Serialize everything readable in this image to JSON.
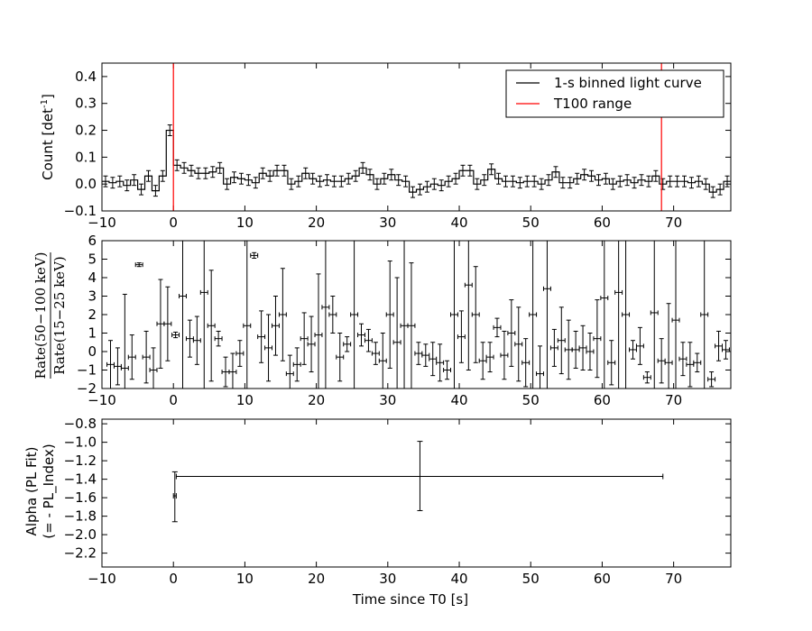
{
  "chart_data": [
    {
      "id": "top",
      "type": "step",
      "title": "",
      "xlabel": "",
      "ylabel": "Count [det",
      "ylabel_sup": "-1",
      "ylabel_tail": "]",
      "xlim": [
        -10,
        78
      ],
      "ylim": [
        -0.1,
        0.45
      ],
      "xticks": [
        -10,
        0,
        10,
        20,
        30,
        40,
        50,
        60,
        70
      ],
      "xtick_labels": [
        "−10",
        "0",
        "10",
        "20",
        "30",
        "40",
        "50",
        "60",
        "70"
      ],
      "yticks": [
        -0.1,
        0.0,
        0.1,
        0.2,
        0.3,
        0.4
      ],
      "ytick_labels": [
        "−0.1",
        "0.0",
        "0.1",
        "0.2",
        "0.3",
        "0.4"
      ],
      "legend": {
        "location": "top-right",
        "entries": [
          {
            "label": "1-s binned light curve",
            "color": "#000000"
          },
          {
            "label": "T100 range",
            "color": "#ff0000"
          }
        ]
      },
      "series": [
        {
          "name": "1-s binned light curve",
          "color": "#000000",
          "bin_start": -10,
          "bin_width": 1,
          "yerr": 0.02,
          "values": [
            0.01,
            0.005,
            0.01,
            -0.005,
            0.015,
            -0.02,
            0.03,
            -0.025,
            0.03,
            0.2,
            0.07,
            0.06,
            0.05,
            0.04,
            0.04,
            0.045,
            0.06,
            0.0,
            0.025,
            0.02,
            0.015,
            0.005,
            0.04,
            0.03,
            0.05,
            0.05,
            0.0,
            0.01,
            0.04,
            0.02,
            0.01,
            0.015,
            0.01,
            0.01,
            0.02,
            0.03,
            0.06,
            0.035,
            0.0,
            0.02,
            0.035,
            0.015,
            0.01,
            -0.03,
            -0.02,
            -0.01,
            0.0,
            -0.005,
            0.01,
            0.02,
            0.05,
            0.05,
            0.0,
            0.015,
            0.055,
            0.02,
            0.01,
            0.01,
            0.005,
            0.01,
            0.01,
            0.0,
            0.015,
            0.045,
            0.005,
            0.005,
            0.02,
            0.035,
            0.03,
            0.015,
            0.02,
            0.0,
            0.01,
            0.015,
            0.005,
            0.015,
            0.01,
            0.03,
            0.0,
            0.01,
            0.01,
            0.01,
            0.005,
            0.01,
            0.0,
            -0.03,
            -0.02,
            0.01
          ]
        }
      ],
      "vlines": [
        {
          "x": 0.0,
          "color": "#ff0000"
        },
        {
          "x": 68.3,
          "color": "#ff0000"
        }
      ]
    },
    {
      "id": "middle",
      "type": "errorbar",
      "title": "",
      "xlabel": "",
      "ylabel_top": "Rate(50−100 keV)",
      "ylabel_bottom": "Rate(15−25 keV)",
      "xlim": [
        -10,
        78
      ],
      "ylim": [
        -2,
        6
      ],
      "xticks": [
        -10,
        0,
        10,
        20,
        30,
        40,
        50,
        60,
        70
      ],
      "xtick_labels": [
        "−10",
        "0",
        "10",
        "20",
        "30",
        "40",
        "50",
        "60",
        "70"
      ],
      "yticks": [
        -2,
        -1,
        0,
        1,
        2,
        3,
        4,
        5,
        6
      ],
      "ytick_labels": [
        "−2",
        "−1",
        "0",
        "1",
        "2",
        "3",
        "4",
        "5",
        "6"
      ],
      "points": [
        {
          "x": -8.8,
          "y": -0.7,
          "yerr": 1.3
        },
        {
          "x": -7.8,
          "y": -0.8,
          "yerr": 1.0
        },
        {
          "x": -6.8,
          "y": -0.9,
          "yerr": 4.0
        },
        {
          "x": -5.8,
          "y": -0.3,
          "yerr": 1.2
        },
        {
          "x": -4.8,
          "y": 4.7,
          "yerr": 0.1
        },
        {
          "x": -3.8,
          "y": -0.3,
          "yerr": 1.4
        },
        {
          "x": -2.8,
          "y": -1.0,
          "yerr": 1.2
        },
        {
          "x": -1.8,
          "y": 1.5,
          "yerr": 2.4
        },
        {
          "x": -0.8,
          "y": 1.5,
          "yerr": 2.0
        },
        {
          "x": 0.3,
          "y": 0.9,
          "yerr": 0.15
        },
        {
          "x": 1.3,
          "y": 3.0,
          "yerr": 6.0
        },
        {
          "x": 2.3,
          "y": 0.7,
          "yerr": 1.0
        },
        {
          "x": 3.3,
          "y": 0.6,
          "yerr": 1.3
        },
        {
          "x": 4.3,
          "y": 3.2,
          "yerr": 6.0
        },
        {
          "x": 5.3,
          "y": 1.4,
          "yerr": 3.0
        },
        {
          "x": 6.3,
          "y": 0.7,
          "yerr": 0.4
        },
        {
          "x": 7.3,
          "y": -1.1,
          "yerr": 0.8
        },
        {
          "x": 8.3,
          "y": -1.1,
          "yerr": 1.0
        },
        {
          "x": 9.3,
          "y": -0.1,
          "yerr": 0.7
        },
        {
          "x": 10.3,
          "y": 1.4,
          "yerr": 6.0
        },
        {
          "x": 11.3,
          "y": 5.2,
          "yerr": 0.15
        },
        {
          "x": 12.3,
          "y": 0.8,
          "yerr": 1.4
        },
        {
          "x": 13.3,
          "y": 0.2,
          "yerr": 1.8
        },
        {
          "x": 14.3,
          "y": 1.4,
          "yerr": 1.6
        },
        {
          "x": 15.3,
          "y": 2.0,
          "yerr": 2.5
        },
        {
          "x": 16.3,
          "y": -1.2,
          "yerr": 1.0
        },
        {
          "x": 17.3,
          "y": -0.7,
          "yerr": 0.9
        },
        {
          "x": 18.3,
          "y": 0.7,
          "yerr": 1.4
        },
        {
          "x": 19.3,
          "y": 0.4,
          "yerr": 1.5
        },
        {
          "x": 20.3,
          "y": 0.9,
          "yerr": 3.3
        },
        {
          "x": 21.3,
          "y": 2.4,
          "yerr": 6.0
        },
        {
          "x": 22.3,
          "y": 2.0,
          "yerr": 1.0
        },
        {
          "x": 23.3,
          "y": -0.3,
          "yerr": 1.3
        },
        {
          "x": 24.3,
          "y": 0.4,
          "yerr": 0.4
        },
        {
          "x": 25.3,
          "y": 2.0,
          "yerr": 6.0
        },
        {
          "x": 26.3,
          "y": 0.9,
          "yerr": 0.6
        },
        {
          "x": 27.3,
          "y": 0.6,
          "yerr": 0.6
        },
        {
          "x": 28.3,
          "y": -0.1,
          "yerr": 0.6
        },
        {
          "x": 29.3,
          "y": -0.5,
          "yerr": 1.5
        },
        {
          "x": 30.3,
          "y": 2.0,
          "yerr": 2.9
        },
        {
          "x": 31.3,
          "y": 0.5,
          "yerr": 3.5
        },
        {
          "x": 32.3,
          "y": 1.4,
          "yerr": 6.0
        },
        {
          "x": 33.3,
          "y": 1.4,
          "yerr": 3.4
        },
        {
          "x": 34.3,
          "y": -0.1,
          "yerr": 0.6
        },
        {
          "x": 35.3,
          "y": -0.2,
          "yerr": 0.6
        },
        {
          "x": 36.3,
          "y": -0.4,
          "yerr": 0.9
        },
        {
          "x": 37.3,
          "y": -0.6,
          "yerr": 1.0
        },
        {
          "x": 38.3,
          "y": -1.0,
          "yerr": 0.5
        },
        {
          "x": 39.3,
          "y": 2.0,
          "yerr": 6.0
        },
        {
          "x": 40.3,
          "y": 0.8,
          "yerr": 1.4
        },
        {
          "x": 41.3,
          "y": 3.6,
          "yerr": 4.6
        },
        {
          "x": 42.3,
          "y": 2.0,
          "yerr": 2.6
        },
        {
          "x": 43.3,
          "y": -0.5,
          "yerr": 1.0
        },
        {
          "x": 44.3,
          "y": -0.3,
          "yerr": 0.8
        },
        {
          "x": 45.3,
          "y": 1.3,
          "yerr": 0.5
        },
        {
          "x": 46.3,
          "y": -0.2,
          "yerr": 1.3
        },
        {
          "x": 47.3,
          "y": 1.0,
          "yerr": 1.8
        },
        {
          "x": 48.3,
          "y": 0.4,
          "yerr": 2.0
        },
        {
          "x": 49.3,
          "y": -0.6,
          "yerr": 1.3
        },
        {
          "x": 50.3,
          "y": 2.0,
          "yerr": 6.0
        },
        {
          "x": 51.3,
          "y": -1.2,
          "yerr": 1.5
        },
        {
          "x": 52.3,
          "y": 3.4,
          "yerr": 6.0
        },
        {
          "x": 53.3,
          "y": 0.2,
          "yerr": 1.0
        },
        {
          "x": 54.3,
          "y": 0.6,
          "yerr": 1.8
        },
        {
          "x": 55.3,
          "y": 0.1,
          "yerr": 1.6
        },
        {
          "x": 56.3,
          "y": 0.1,
          "yerr": 1.0
        },
        {
          "x": 57.3,
          "y": 0.2,
          "yerr": 1.2
        },
        {
          "x": 58.3,
          "y": 0.0,
          "yerr": 1.0
        },
        {
          "x": 59.3,
          "y": 0.7,
          "yerr": 2.1
        },
        {
          "x": 60.3,
          "y": 2.9,
          "yerr": 6.0
        },
        {
          "x": 61.3,
          "y": -0.6,
          "yerr": 1.2
        },
        {
          "x": 62.3,
          "y": 3.2,
          "yerr": 6.0
        },
        {
          "x": 63.3,
          "y": 2.0,
          "yerr": 6.0
        },
        {
          "x": 64.3,
          "y": 0.1,
          "yerr": 0.5
        },
        {
          "x": 65.3,
          "y": 0.3,
          "yerr": 1.0
        },
        {
          "x": 66.3,
          "y": -1.4,
          "yerr": 0.3
        },
        {
          "x": 67.3,
          "y": 2.1,
          "yerr": 6.0
        },
        {
          "x": 68.3,
          "y": -0.5,
          "yerr": 1.2
        },
        {
          "x": 69.3,
          "y": -0.6,
          "yerr": 3.2
        },
        {
          "x": 70.3,
          "y": 1.7,
          "yerr": 4.3
        },
        {
          "x": 71.3,
          "y": -0.4,
          "yerr": 0.9
        },
        {
          "x": 72.3,
          "y": -0.7,
          "yerr": 1.2
        },
        {
          "x": 73.3,
          "y": -0.6,
          "yerr": 0.5
        },
        {
          "x": 74.3,
          "y": 2.0,
          "yerr": 6.0
        },
        {
          "x": 75.3,
          "y": -1.5,
          "yerr": 0.4
        },
        {
          "x": 76.3,
          "y": 0.3,
          "yerr": 0.8
        },
        {
          "x": 77.3,
          "y": 0.1,
          "yerr": 0.5
        }
      ]
    },
    {
      "id": "bottom",
      "type": "errorbar",
      "title": "",
      "xlabel": "Time since T0 [s]",
      "ylabel_line1": "Alpha (PL Fit)",
      "ylabel_line2": "(= - PL_Index)",
      "xlim": [
        -10,
        78
      ],
      "ylim": [
        -2.35,
        -0.75
      ],
      "xticks": [
        -10,
        0,
        10,
        20,
        30,
        40,
        50,
        60,
        70
      ],
      "xtick_labels": [
        "−10",
        "0",
        "10",
        "20",
        "30",
        "40",
        "50",
        "60",
        "70"
      ],
      "yticks": [
        -2.2,
        -2.0,
        -1.8,
        -1.6,
        -1.4,
        -1.2,
        -1.0,
        -0.8
      ],
      "ytick_labels": [
        "−2.2",
        "−2.0",
        "−1.8",
        "−1.6",
        "−1.4",
        "−1.2",
        "−1.0",
        "−0.8"
      ],
      "points": [
        {
          "x": 0.2,
          "xerr_low": 0.2,
          "xerr_high": 0.2,
          "y": -1.58,
          "yerr_low": 0.28,
          "yerr_high": 0.26
        },
        {
          "x": 34.5,
          "xerr_low": 34.1,
          "xerr_high": 34.0,
          "y": -1.37,
          "yerr_low": 0.37,
          "yerr_high": 0.38
        }
      ]
    }
  ]
}
